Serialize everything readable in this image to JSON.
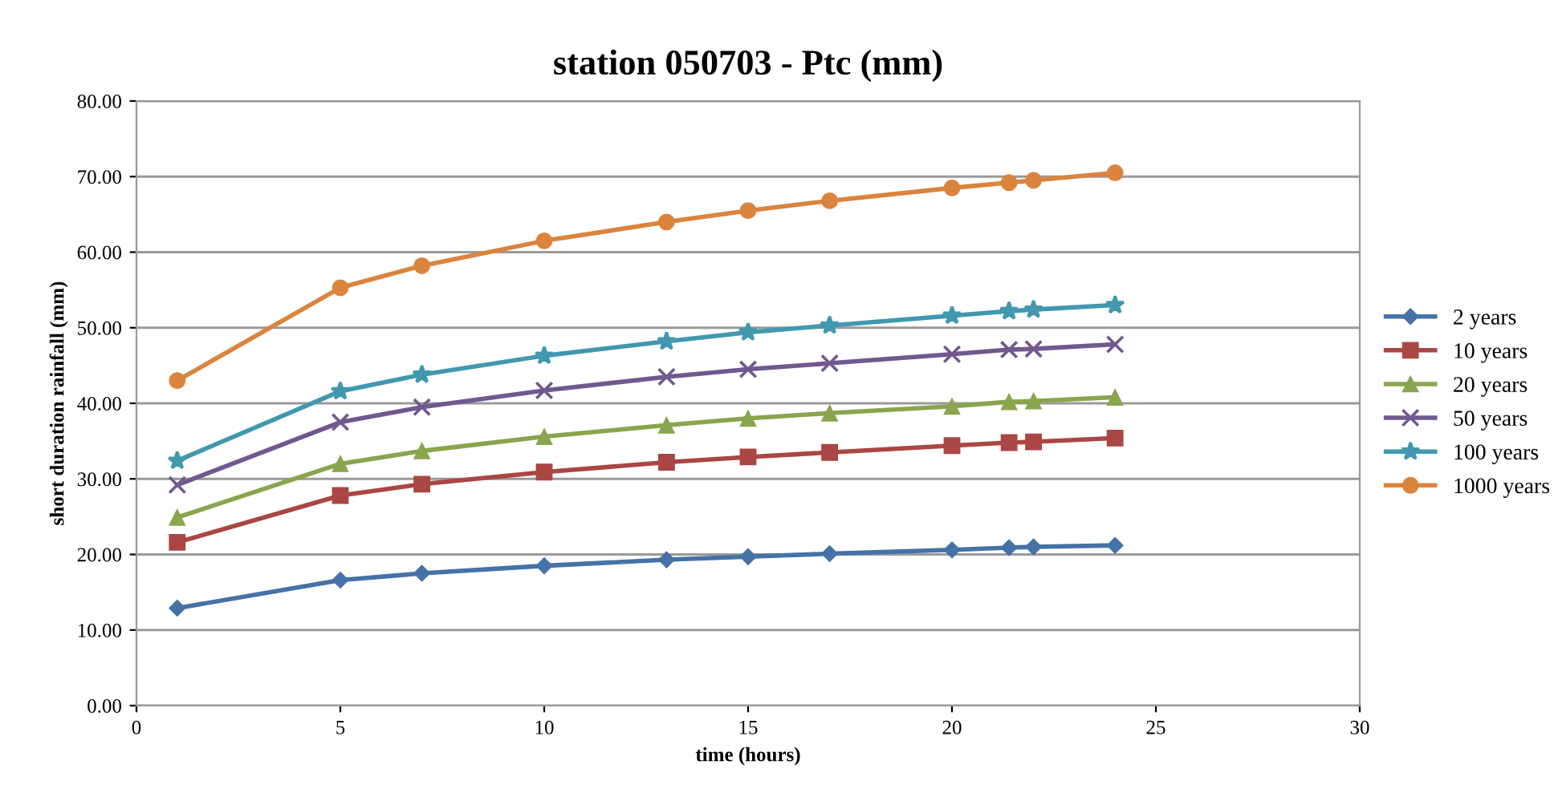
{
  "chart_data": {
    "type": "line",
    "title": "station 050703 - Ptc (mm)",
    "xlabel": "time (hours)",
    "ylabel": "short duration rainfall (mm)",
    "x": [
      1,
      5,
      7,
      10,
      13,
      15,
      17,
      20,
      21.4,
      22,
      24
    ],
    "series": [
      {
        "name": "2 years",
        "color": "#4572a7",
        "marker": "diamond",
        "values": [
          12.9,
          16.6,
          17.5,
          18.5,
          19.3,
          19.7,
          20.1,
          20.6,
          20.9,
          21.0,
          21.2
        ]
      },
      {
        "name": "10 years",
        "color": "#aa4643",
        "marker": "square",
        "values": [
          21.6,
          27.8,
          29.3,
          30.9,
          32.2,
          32.9,
          33.5,
          34.4,
          34.8,
          34.9,
          35.4
        ]
      },
      {
        "name": "20 years",
        "color": "#89a54e",
        "marker": "triangle",
        "values": [
          24.9,
          32.0,
          33.7,
          35.6,
          37.1,
          38.0,
          38.7,
          39.6,
          40.2,
          40.3,
          40.8
        ]
      },
      {
        "name": "50 years",
        "color": "#71588f",
        "marker": "cross",
        "values": [
          29.2,
          37.5,
          39.5,
          41.7,
          43.5,
          44.5,
          45.3,
          46.5,
          47.1,
          47.2,
          47.8
        ]
      },
      {
        "name": "100 years",
        "color": "#4198af",
        "marker": "star",
        "values": [
          32.4,
          41.6,
          43.8,
          46.3,
          48.2,
          49.4,
          50.3,
          51.6,
          52.2,
          52.4,
          53.0
        ]
      },
      {
        "name": "1000 years",
        "color": "#db843d",
        "marker": "circle",
        "values": [
          43.0,
          55.3,
          58.2,
          61.5,
          64.0,
          65.5,
          66.8,
          68.5,
          69.2,
          69.5,
          70.5
        ]
      }
    ],
    "xlim": [
      0,
      30
    ],
    "xticks": [
      0,
      5,
      10,
      15,
      20,
      25,
      30
    ],
    "ylim": [
      0,
      80
    ],
    "yticks": [
      {
        "value": 0,
        "label": "0.00"
      },
      {
        "value": 10,
        "label": "10.00"
      },
      {
        "value": 20,
        "label": "20.00"
      },
      {
        "value": 30,
        "label": "30.00"
      },
      {
        "value": 40,
        "label": "40.00"
      },
      {
        "value": 50,
        "label": "50.00"
      },
      {
        "value": 60,
        "label": "60.00"
      },
      {
        "value": 70,
        "label": "70.00"
      },
      {
        "value": 80,
        "label": "80.00"
      }
    ],
    "grid": "y",
    "legend": "right",
    "line_style": "solid"
  }
}
